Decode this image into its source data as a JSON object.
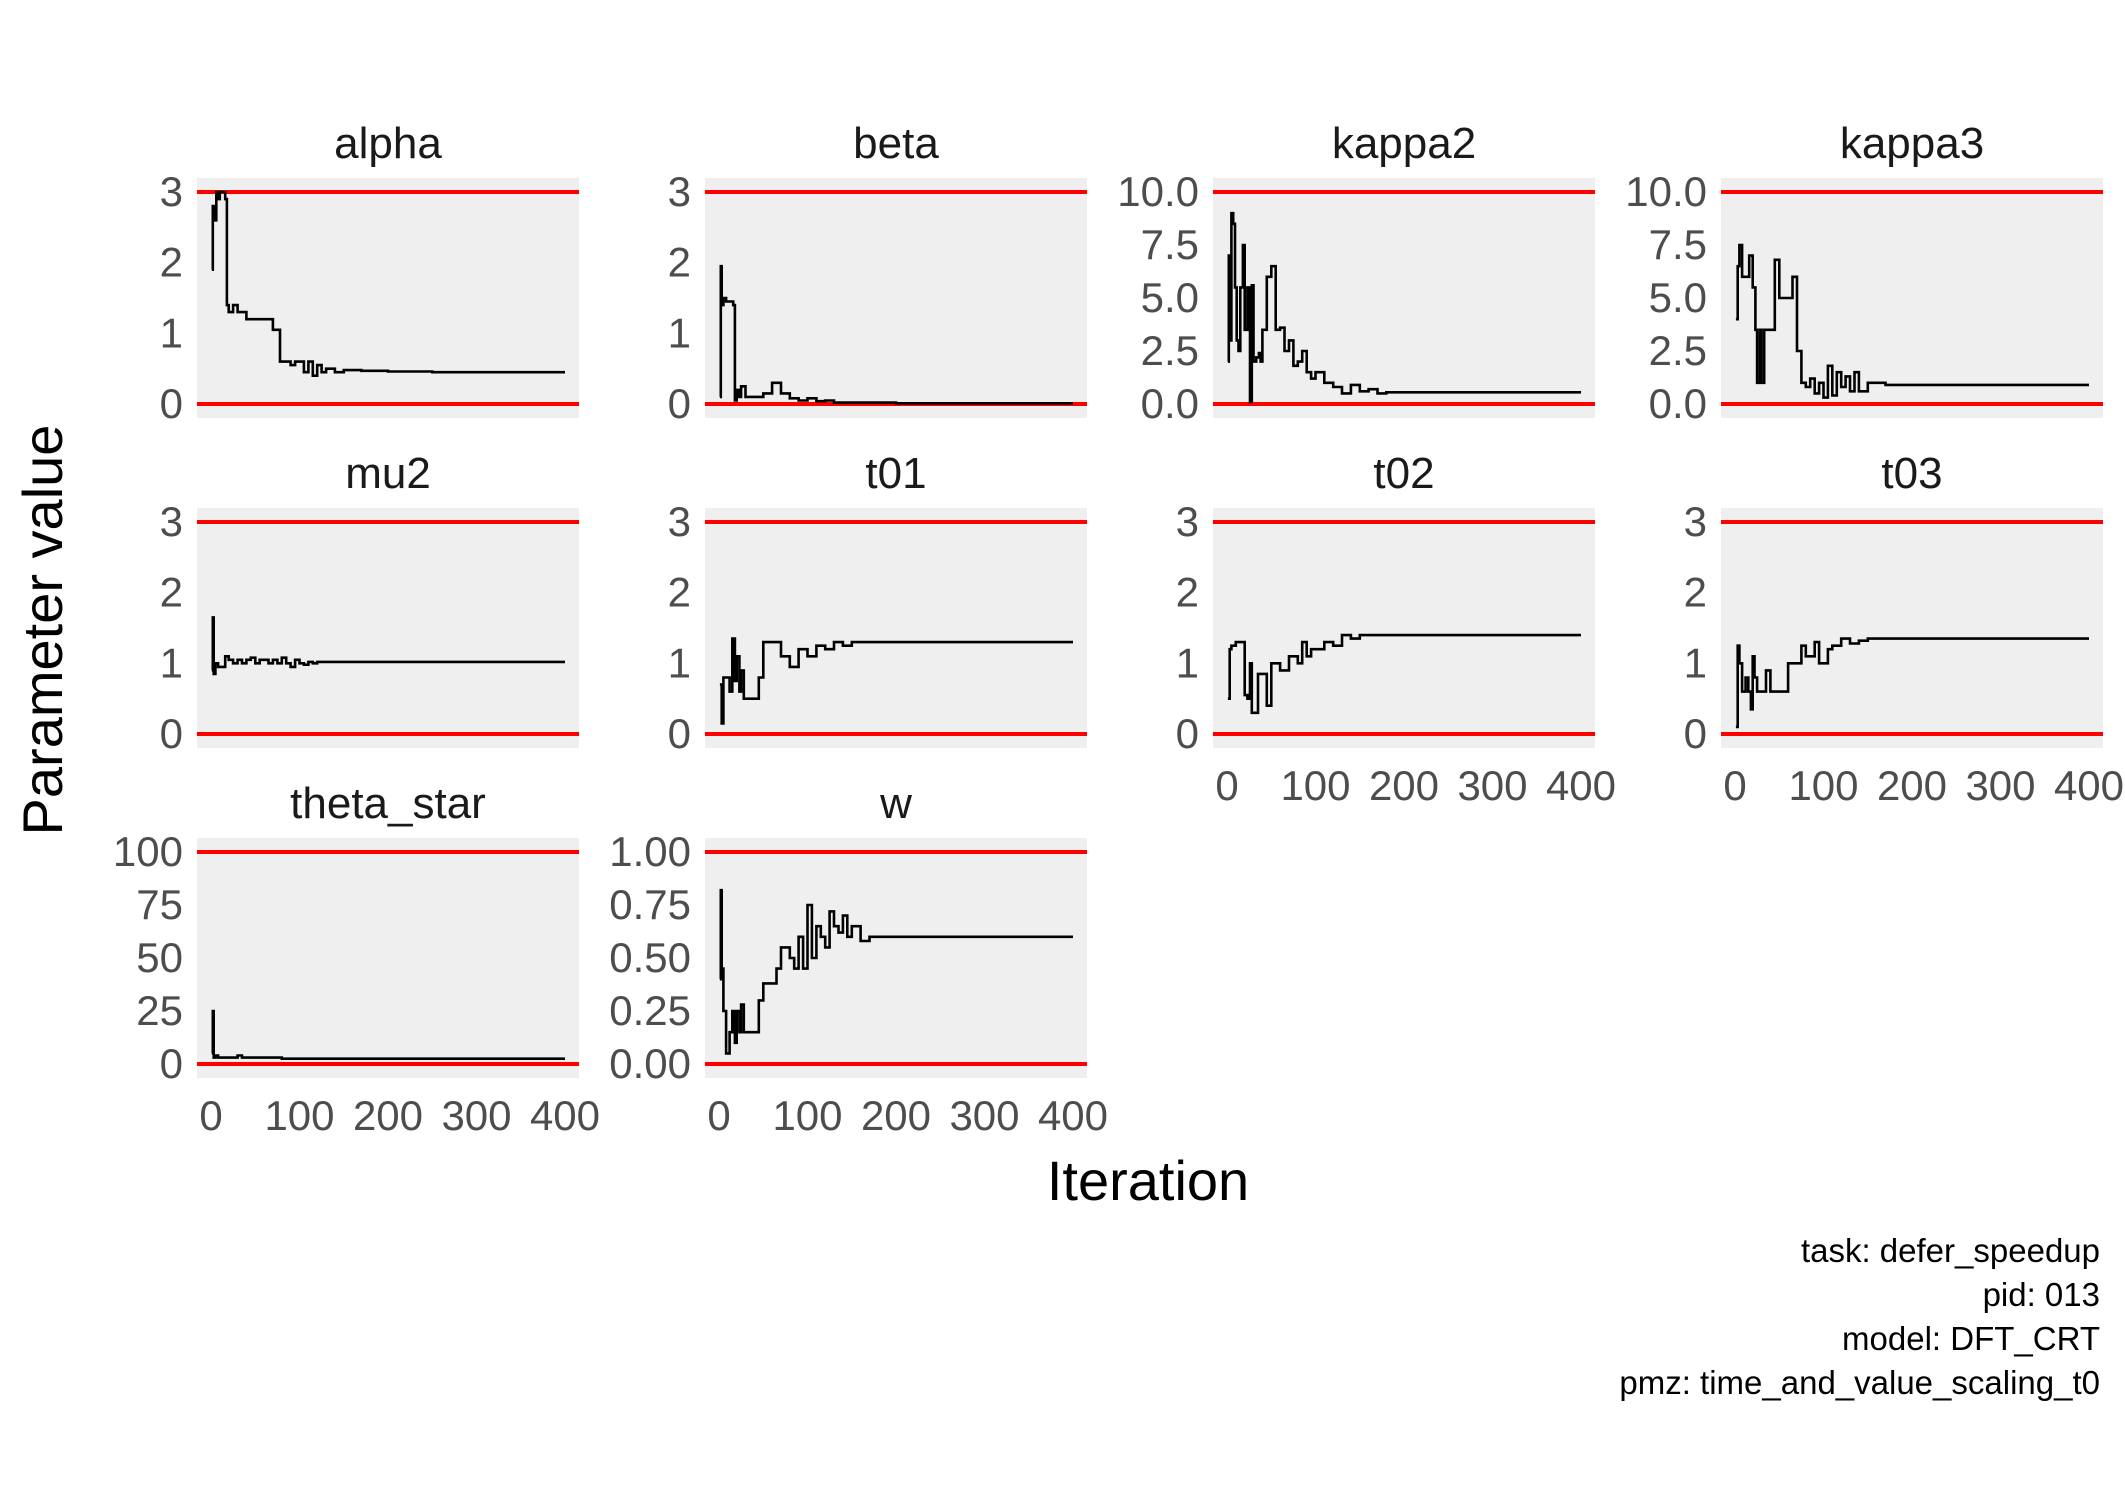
{
  "figure": {
    "xlabel": "Iteration",
    "ylabel": "Parameter value",
    "caption": [
      "task: defer_speedup",
      "pid: 013",
      "model: DFT_CRT",
      "pmz: time_and_value_scaling_t0"
    ]
  },
  "colors": {
    "panel_background": "#efefef",
    "bound_line": "#ff0000",
    "series_line": "#000000",
    "tick_text": "#4d4d4d"
  },
  "chart_data": [
    {
      "type": "line",
      "step": true,
      "title": "alpha",
      "xlim": [
        0,
        400
      ],
      "ylim": [
        0,
        3
      ],
      "yticks": [
        0,
        1,
        2,
        3
      ],
      "ytick_labels": [
        "0",
        "1",
        "2",
        "3"
      ],
      "xticks": [],
      "xtick_labels": [],
      "hlines": [
        0,
        3
      ],
      "x": [
        1,
        2,
        3,
        6,
        8,
        10,
        13,
        16,
        18,
        20,
        25,
        30,
        35,
        40,
        50,
        60,
        70,
        78,
        85,
        90,
        95,
        100,
        105,
        110,
        115,
        120,
        125,
        130,
        140,
        150,
        170,
        200,
        250,
        300,
        350,
        400
      ],
      "y": [
        1.9,
        2.8,
        2.6,
        3.0,
        2.9,
        3.0,
        3.0,
        2.9,
        1.4,
        1.3,
        1.4,
        1.3,
        1.3,
        1.2,
        1.2,
        1.2,
        1.05,
        0.6,
        0.6,
        0.55,
        0.6,
        0.6,
        0.45,
        0.6,
        0.4,
        0.55,
        0.45,
        0.5,
        0.45,
        0.48,
        0.47,
        0.46,
        0.45,
        0.45,
        0.45,
        0.45
      ]
    },
    {
      "type": "line",
      "step": true,
      "title": "beta",
      "xlim": [
        0,
        400
      ],
      "ylim": [
        0,
        3
      ],
      "yticks": [
        0,
        1,
        2,
        3
      ],
      "ytick_labels": [
        "0",
        "1",
        "2",
        "3"
      ],
      "xticks": [],
      "xtick_labels": [],
      "hlines": [
        0,
        3
      ],
      "x": [
        1,
        2,
        3,
        5,
        8,
        12,
        16,
        18,
        20,
        22,
        25,
        30,
        40,
        50,
        60,
        70,
        80,
        90,
        100,
        110,
        120,
        130,
        150,
        200,
        250,
        300,
        350,
        400
      ],
      "y": [
        0.1,
        1.95,
        1.4,
        1.5,
        1.45,
        1.45,
        1.4,
        0.05,
        0.2,
        0.1,
        0.25,
        0.1,
        0.1,
        0.15,
        0.3,
        0.15,
        0.08,
        0.05,
        0.08,
        0.04,
        0.05,
        0.02,
        0.02,
        0.01,
        0.01,
        0.01,
        0.01,
        0.01
      ]
    },
    {
      "type": "line",
      "step": true,
      "title": "kappa2",
      "xlim": [
        0,
        400
      ],
      "ylim": [
        0,
        10
      ],
      "yticks": [
        0,
        2.5,
        5,
        7.5,
        10
      ],
      "ytick_labels": [
        "0.0",
        "2.5",
        "5.0",
        "7.5",
        "10.0"
      ],
      "xticks": [],
      "xtick_labels": [],
      "hlines": [
        0,
        10
      ],
      "x": [
        1,
        2,
        3,
        5,
        7,
        9,
        11,
        13,
        15,
        18,
        20,
        23,
        26,
        28,
        30,
        33,
        36,
        38,
        40,
        45,
        50,
        55,
        60,
        65,
        70,
        75,
        80,
        85,
        90,
        95,
        100,
        110,
        120,
        130,
        140,
        150,
        160,
        170,
        180,
        200,
        250,
        300,
        350,
        400
      ],
      "y": [
        2.0,
        7.0,
        3.0,
        9.0,
        8.5,
        5.5,
        3.0,
        2.5,
        5.5,
        7.5,
        3.5,
        5.5,
        0.1,
        5.6,
        2.0,
        2.2,
        2.4,
        2.0,
        3.5,
        6.0,
        6.5,
        3.5,
        3.6,
        2.5,
        3.0,
        1.8,
        2.0,
        2.5,
        1.5,
        1.2,
        1.5,
        1.0,
        0.8,
        0.5,
        0.9,
        0.6,
        0.7,
        0.5,
        0.55,
        0.55,
        0.55,
        0.55,
        0.55,
        0.55
      ]
    },
    {
      "type": "line",
      "step": true,
      "title": "kappa3",
      "xlim": [
        0,
        400
      ],
      "ylim": [
        0,
        10
      ],
      "yticks": [
        0,
        2.5,
        5,
        7.5,
        10
      ],
      "ytick_labels": [
        "0.0",
        "2.5",
        "5.0",
        "7.5",
        "10.0"
      ],
      "xticks": [],
      "xtick_labels": [],
      "hlines": [
        0,
        10
      ],
      "x": [
        1,
        3,
        5,
        8,
        12,
        16,
        20,
        23,
        25,
        28,
        30,
        33,
        36,
        40,
        45,
        50,
        55,
        60,
        65,
        70,
        75,
        80,
        85,
        90,
        95,
        100,
        105,
        110,
        115,
        120,
        125,
        130,
        135,
        140,
        150,
        170,
        200,
        250,
        300,
        350,
        400
      ],
      "y": [
        4.0,
        6.5,
        7.5,
        6.0,
        6.0,
        7.0,
        5.5,
        3.5,
        1.0,
        3.5,
        1.0,
        3.5,
        3.5,
        3.5,
        6.8,
        5.0,
        5.0,
        5.0,
        6.0,
        2.5,
        1.0,
        0.8,
        1.2,
        0.5,
        1.0,
        0.3,
        1.8,
        0.4,
        1.5,
        0.8,
        1.3,
        0.6,
        1.5,
        0.6,
        1.0,
        0.9,
        0.9,
        0.9,
        0.9,
        0.9,
        0.9
      ]
    },
    {
      "type": "line",
      "step": true,
      "title": "mu2",
      "xlim": [
        0,
        400
      ],
      "ylim": [
        0,
        3
      ],
      "yticks": [
        0,
        1,
        2,
        3
      ],
      "ytick_labels": [
        "0",
        "1",
        "2",
        "3"
      ],
      "xticks": [],
      "xtick_labels": [],
      "hlines": [
        0,
        3
      ],
      "x": [
        1,
        2,
        3,
        5,
        8,
        12,
        16,
        20,
        25,
        30,
        35,
        40,
        45,
        50,
        55,
        60,
        65,
        70,
        75,
        80,
        85,
        90,
        95,
        100,
        105,
        110,
        115,
        120,
        130,
        150,
        200,
        250,
        300,
        350,
        400
      ],
      "y": [
        0.9,
        1.65,
        0.85,
        1.0,
        0.95,
        0.95,
        1.1,
        1.05,
        1.0,
        1.05,
        1.0,
        1.05,
        1.08,
        1.0,
        1.05,
        1.05,
        1.0,
        1.05,
        1.0,
        1.08,
        1.0,
        0.95,
        1.05,
        1.0,
        0.98,
        1.02,
        1.0,
        1.02,
        1.02,
        1.02,
        1.02,
        1.02,
        1.02,
        1.02,
        1.02
      ]
    },
    {
      "type": "line",
      "step": true,
      "title": "t01",
      "xlim": [
        0,
        400
      ],
      "ylim": [
        0,
        3
      ],
      "yticks": [
        0,
        1,
        2,
        3
      ],
      "ytick_labels": [
        "0",
        "1",
        "2",
        "3"
      ],
      "xticks": [],
      "xtick_labels": [],
      "hlines": [
        0,
        3
      ],
      "x": [
        1,
        3,
        5,
        8,
        12,
        15,
        18,
        20,
        23,
        25,
        28,
        30,
        35,
        40,
        45,
        50,
        55,
        60,
        70,
        80,
        90,
        100,
        110,
        120,
        130,
        140,
        150,
        170,
        200,
        250,
        300,
        350,
        400
      ],
      "y": [
        0.7,
        0.15,
        0.8,
        0.8,
        0.6,
        1.35,
        0.75,
        1.1,
        0.6,
        0.9,
        0.5,
        0.5,
        0.5,
        0.5,
        0.8,
        1.3,
        1.3,
        1.3,
        1.1,
        0.95,
        1.2,
        1.1,
        1.25,
        1.2,
        1.3,
        1.25,
        1.3,
        1.3,
        1.3,
        1.3,
        1.3,
        1.3,
        1.3
      ]
    },
    {
      "type": "line",
      "step": true,
      "title": "t02",
      "xlim": [
        0,
        400
      ],
      "ylim": [
        0,
        3
      ],
      "yticks": [
        0,
        1,
        2,
        3
      ],
      "ytick_labels": [
        "0",
        "1",
        "2",
        "3"
      ],
      "xticks": [
        0,
        100,
        200,
        300,
        400
      ],
      "xtick_labels": [
        "0",
        "100",
        "200",
        "300",
        "400"
      ],
      "hlines": [
        0,
        3
      ],
      "x": [
        1,
        3,
        5,
        10,
        15,
        20,
        23,
        26,
        28,
        30,
        35,
        40,
        45,
        50,
        55,
        60,
        65,
        70,
        75,
        80,
        85,
        90,
        95,
        100,
        110,
        120,
        130,
        140,
        150,
        170,
        200,
        250,
        300,
        350,
        400
      ],
      "y": [
        0.5,
        1.2,
        1.25,
        1.3,
        1.3,
        0.55,
        0.5,
        1.0,
        0.3,
        0.3,
        0.85,
        0.85,
        0.4,
        1.0,
        1.0,
        0.9,
        0.9,
        1.1,
        1.1,
        1.0,
        1.3,
        1.1,
        1.2,
        1.2,
        1.3,
        1.25,
        1.4,
        1.35,
        1.4,
        1.4,
        1.4,
        1.4,
        1.4,
        1.4,
        1.4
      ]
    },
    {
      "type": "line",
      "step": true,
      "title": "t03",
      "xlim": [
        0,
        400
      ],
      "ylim": [
        0,
        3
      ],
      "yticks": [
        0,
        1,
        2,
        3
      ],
      "ytick_labels": [
        "0",
        "1",
        "2",
        "3"
      ],
      "xticks": [
        0,
        100,
        200,
        300,
        400
      ],
      "xtick_labels": [
        "0",
        "100",
        "200",
        "300",
        "400"
      ],
      "hlines": [
        0,
        3
      ],
      "x": [
        1,
        3,
        5,
        8,
        10,
        12,
        15,
        18,
        20,
        22,
        25,
        30,
        35,
        40,
        50,
        60,
        70,
        75,
        80,
        85,
        90,
        95,
        100,
        105,
        110,
        115,
        120,
        130,
        140,
        150,
        170,
        200,
        250,
        300,
        350,
        400
      ],
      "y": [
        0.1,
        1.25,
        1.0,
        0.6,
        0.6,
        0.8,
        0.6,
        0.35,
        1.1,
        0.8,
        0.6,
        0.6,
        0.9,
        0.6,
        0.6,
        1.0,
        1.0,
        1.25,
        1.1,
        1.1,
        1.3,
        1.0,
        1.0,
        1.2,
        1.25,
        1.25,
        1.35,
        1.28,
        1.32,
        1.35,
        1.35,
        1.35,
        1.35,
        1.35,
        1.35,
        1.35
      ]
    },
    {
      "type": "line",
      "step": true,
      "title": "theta_star",
      "xlim": [
        0,
        400
      ],
      "ylim": [
        0,
        100
      ],
      "yticks": [
        0,
        25,
        50,
        75,
        100
      ],
      "ytick_labels": [
        "0",
        "25",
        "50",
        "75",
        "100"
      ],
      "xticks": [
        0,
        100,
        200,
        300,
        400
      ],
      "xtick_labels": [
        "0",
        "100",
        "200",
        "300",
        "400"
      ],
      "hlines": [
        0,
        100
      ],
      "x": [
        1,
        2,
        3,
        5,
        8,
        15,
        20,
        25,
        30,
        35,
        40,
        50,
        60,
        80,
        100,
        150,
        200,
        250,
        300,
        350,
        400
      ],
      "y": [
        5,
        25,
        3,
        4,
        3,
        3,
        3,
        3,
        4,
        3,
        3,
        3,
        3,
        2.5,
        2.5,
        2.5,
        2.5,
        2.5,
        2.5,
        2.5,
        2.5
      ]
    },
    {
      "type": "line",
      "step": true,
      "title": "w",
      "xlim": [
        0,
        400
      ],
      "ylim": [
        0,
        1
      ],
      "yticks": [
        0,
        0.25,
        0.5,
        0.75,
        1
      ],
      "ytick_labels": [
        "0.00",
        "0.25",
        "0.50",
        "0.75",
        "1.00"
      ],
      "xticks": [
        0,
        100,
        200,
        300,
        400
      ],
      "xtick_labels": [
        "0",
        "100",
        "200",
        "300",
        "400"
      ],
      "hlines": [
        0,
        1
      ],
      "x": [
        1,
        2,
        3,
        5,
        8,
        10,
        12,
        15,
        18,
        20,
        23,
        25,
        28,
        30,
        35,
        40,
        45,
        50,
        55,
        60,
        65,
        70,
        75,
        80,
        85,
        90,
        95,
        100,
        105,
        110,
        115,
        120,
        125,
        130,
        135,
        140,
        145,
        150,
        160,
        170,
        180,
        200,
        250,
        300,
        350,
        400
      ],
      "y": [
        0.4,
        0.82,
        0.45,
        0.25,
        0.05,
        0.05,
        0.15,
        0.25,
        0.1,
        0.25,
        0.15,
        0.28,
        0.15,
        0.15,
        0.15,
        0.15,
        0.3,
        0.38,
        0.38,
        0.38,
        0.45,
        0.55,
        0.55,
        0.5,
        0.45,
        0.6,
        0.45,
        0.75,
        0.5,
        0.65,
        0.6,
        0.55,
        0.72,
        0.65,
        0.62,
        0.7,
        0.6,
        0.65,
        0.58,
        0.6,
        0.6,
        0.6,
        0.6,
        0.6,
        0.6,
        0.6
      ]
    }
  ]
}
